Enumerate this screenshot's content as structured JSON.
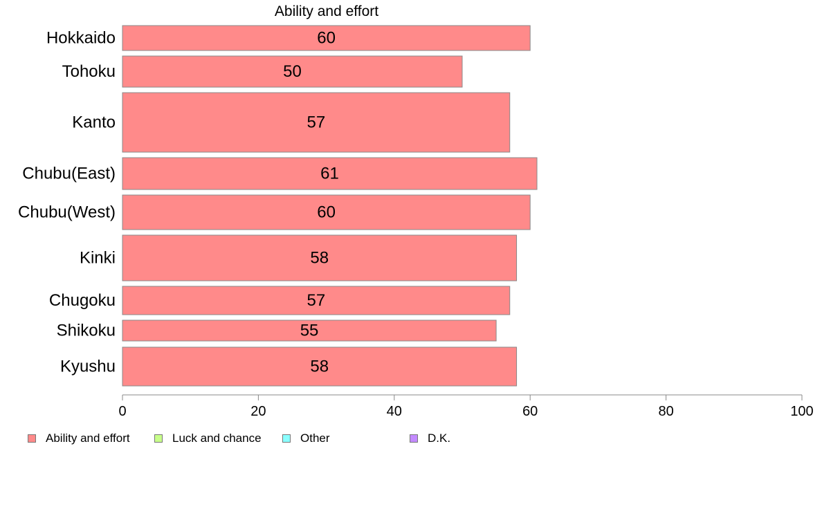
{
  "chart_data": {
    "type": "bar",
    "orientation": "horizontal",
    "title": "Ability and effort",
    "categories": [
      "Hokkaido",
      "Tohoku",
      "Kanto",
      "Chubu(East)",
      "Chubu(West)",
      "Kinki",
      "Chugoku",
      "Shikoku",
      "Kyushu"
    ],
    "series": [
      {
        "name": "Ability and effort",
        "color": "#ff8a8a",
        "values": [
          60,
          50,
          57,
          61,
          60,
          58,
          57,
          55,
          58
        ],
        "labels": [
          "60",
          "50",
          "57",
          "61",
          "60",
          "58",
          "57",
          "55",
          "58"
        ]
      }
    ],
    "xlim": [
      0,
      100
    ],
    "xticks": [
      0,
      20,
      40,
      60,
      80,
      100
    ],
    "xtick_labels": [
      "0",
      "20",
      "40",
      "60",
      "80",
      "100"
    ],
    "grid": false,
    "legend_position": "bottom-left",
    "legend": [
      {
        "label": "Ability and effort",
        "color": "#ff8a8a"
      },
      {
        "label": "Luck and chance",
        "color": "#c8ff8a"
      },
      {
        "label": "Other",
        "color": "#8affff"
      },
      {
        "label": "D.K.",
        "color": "#c38aff"
      }
    ]
  }
}
